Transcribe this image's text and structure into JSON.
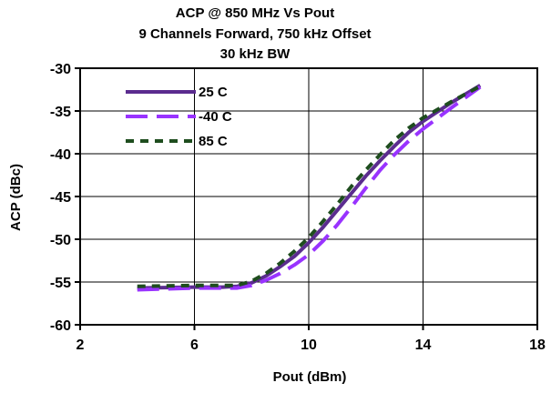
{
  "chart_data": {
    "type": "line",
    "title": "ACP @ 850 MHz Vs Pout",
    "subtitle_lines": [
      "9 Channels Forward, 750 kHz Offset",
      "30 kHz BW"
    ],
    "xlabel": "Pout (dBm)",
    "ylabel": "ACP (dBc)",
    "xlim": [
      2,
      18
    ],
    "ylim": [
      -60,
      -30
    ],
    "xticks": [
      2,
      6,
      10,
      14,
      18
    ],
    "yticks": [
      -30,
      -35,
      -40,
      -45,
      -50,
      -55,
      -60
    ],
    "grid": true,
    "legend_position": "top-left",
    "series": [
      {
        "name": "25 C",
        "color": "#5B2C8F",
        "dash": "solid",
        "x": [
          4,
          6,
          7,
          7.5,
          8,
          8.5,
          9,
          9.5,
          10,
          10.5,
          11,
          11.5,
          12,
          12.5,
          13,
          13.5,
          14,
          15,
          16
        ],
        "y": [
          -55.7,
          -55.6,
          -55.6,
          -55.5,
          -55.1,
          -54.3,
          -53.2,
          -52.0,
          -50.4,
          -48.6,
          -46.6,
          -44.6,
          -42.6,
          -40.8,
          -39.1,
          -37.5,
          -36.2,
          -34.0,
          -32.0
        ]
      },
      {
        "name": "-40 C",
        "color": "#9933FF",
        "dash": "long-dash",
        "x": [
          4,
          6,
          7,
          7.5,
          8,
          8.5,
          9,
          9.5,
          10,
          10.5,
          11,
          11.5,
          12,
          12.5,
          13,
          13.5,
          14,
          15,
          16
        ],
        "y": [
          -55.9,
          -55.7,
          -55.7,
          -55.7,
          -55.4,
          -54.8,
          -54.0,
          -53.0,
          -51.8,
          -50.2,
          -48.3,
          -46.2,
          -44.0,
          -41.9,
          -40.1,
          -38.5,
          -37.1,
          -34.6,
          -32.2
        ]
      },
      {
        "name": "85 C",
        "color": "#1E4D1E",
        "dash": "short-dash",
        "x": [
          4,
          6,
          7,
          7.5,
          8,
          8.5,
          9,
          9.5,
          10,
          10.5,
          11,
          11.5,
          12,
          12.5,
          13,
          13.5,
          14,
          15,
          16
        ],
        "y": [
          -55.5,
          -55.4,
          -55.4,
          -55.4,
          -54.9,
          -54.0,
          -52.8,
          -51.4,
          -49.8,
          -47.9,
          -45.9,
          -43.8,
          -41.9,
          -40.1,
          -38.4,
          -37.0,
          -35.8,
          -33.9,
          -32.1
        ]
      }
    ]
  }
}
